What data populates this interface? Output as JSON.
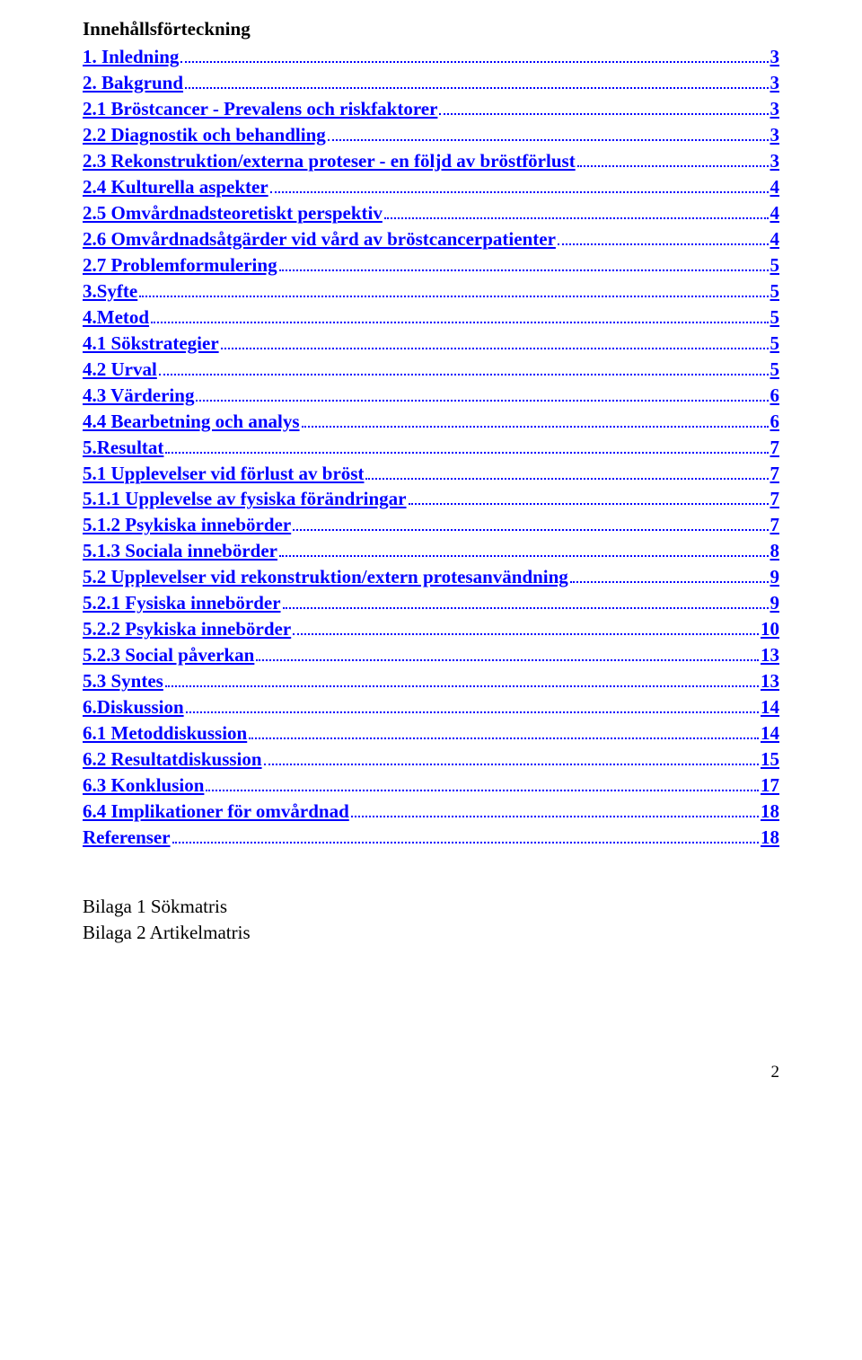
{
  "title": "Innehållsförteckning",
  "toc": [
    {
      "label": "1. Inledning",
      "page": "3",
      "link": true
    },
    {
      "label": "2. Bakgrund",
      "page": "3",
      "link": true
    },
    {
      "label": "2.1 Bröstcancer - Prevalens och riskfaktorer",
      "page": "3",
      "link": true
    },
    {
      "label": "2.2 Diagnostik och behandling",
      "page": "3",
      "link": true
    },
    {
      "label": "2.3 Rekonstruktion/externa proteser - en följd av bröstförlust",
      "page": "3",
      "link": true
    },
    {
      "label": "2.4 Kulturella aspekter",
      "page": "4",
      "link": true
    },
    {
      "label": "2.5 Omvårdnadsteoretiskt perspektiv",
      "page": "4",
      "link": true
    },
    {
      "label": "2.6 Omvårdnadsåtgärder vid vård av bröstcancerpatienter",
      "page": "4",
      "link": true
    },
    {
      "label": "2.7 Problemformulering",
      "page": "5",
      "link": true
    },
    {
      "label": "3.Syfte",
      "page": "5",
      "link": true
    },
    {
      "label": "4.Metod",
      "page": "5",
      "link": true
    },
    {
      "label": "4.1 Sökstrategier",
      "page": "5",
      "link": true
    },
    {
      "label": "4.2 Urval",
      "page": "5",
      "link": true
    },
    {
      "label": "4.3 Värdering",
      "page": "6",
      "link": true
    },
    {
      "label": "4.4 Bearbetning och analys",
      "page": "6",
      "link": true
    },
    {
      "label": "5.Resultat",
      "page": "7",
      "link": true
    },
    {
      "label": "5.1  Upplevelser vid förlust av bröst",
      "page": "7",
      "link": true
    },
    {
      "label": "5.1.1 Upplevelse av fysiska förändringar",
      "page": "7",
      "link": true
    },
    {
      "label": "5.1.2 Psykiska innebörder",
      "page": "7",
      "link": true
    },
    {
      "label": "5.1.3 Sociala innebörder",
      "page": "8",
      "link": true
    },
    {
      "label": "5.2  Upplevelser vid rekonstruktion/extern protesanvändning",
      "page": "9",
      "link": true
    },
    {
      "label": "5.2.1 Fysiska innebörder",
      "page": "9",
      "link": true
    },
    {
      "label": "5.2.2 Psykiska innebörder",
      "page": "10",
      "link": true
    },
    {
      "label": "5.2.3 Social påverkan",
      "page": "13",
      "link": true
    },
    {
      "label": "5.3 Syntes",
      "page": "13",
      "link": true
    },
    {
      "label": "6.Diskussion",
      "page": "14",
      "link": true
    },
    {
      "label": "6.1 Metoddiskussion",
      "page": "14",
      "link": true
    },
    {
      "label": "6.2 Resultatdiskussion",
      "page": "15",
      "link": true
    },
    {
      "label": "6.3 Konklusion",
      "page": "17",
      "link": true
    },
    {
      "label": "6.4 Implikationer för omvårdnad",
      "page": "18",
      "link": true
    },
    {
      "label": "Referenser",
      "page": "18",
      "link": true
    }
  ],
  "appendix": [
    "Bilaga 1 Sökmatris",
    "Bilaga 2 Artikelmatris"
  ],
  "footerPage": "2"
}
